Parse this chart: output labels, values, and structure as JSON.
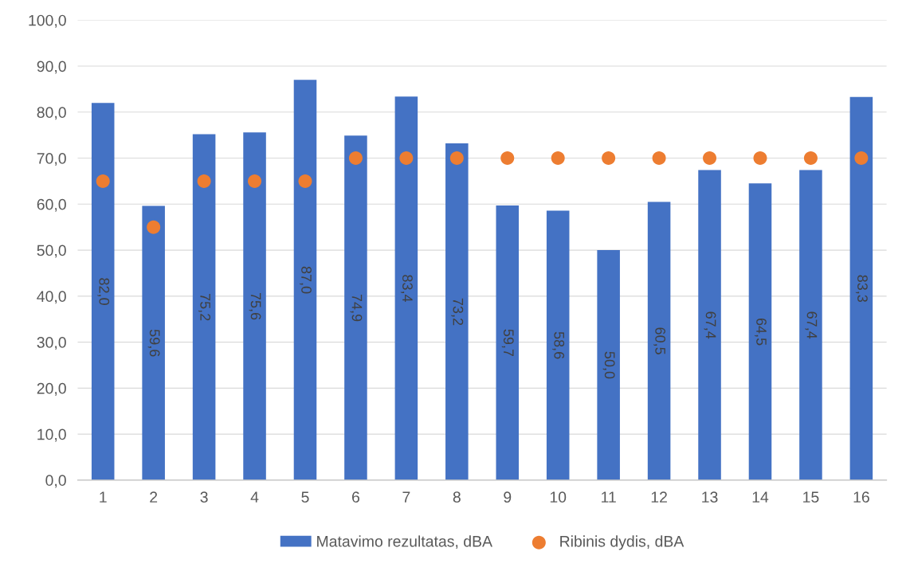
{
  "chart_data": {
    "type": "bar",
    "categories": [
      "1",
      "2",
      "3",
      "4",
      "5",
      "6",
      "7",
      "8",
      "9",
      "10",
      "11",
      "12",
      "13",
      "14",
      "15",
      "16"
    ],
    "series": [
      {
        "name": "Matavimo rezultatas, dBA",
        "color": "#4472c4",
        "values": [
          82.0,
          59.6,
          75.2,
          75.6,
          87.0,
          74.9,
          83.4,
          73.2,
          59.7,
          58.6,
          50.0,
          60.5,
          67.4,
          64.5,
          67.4,
          83.3
        ],
        "value_labels": [
          "82,0",
          "59,6",
          "75,2",
          "75,6",
          "87,0",
          "74,9",
          "83,4",
          "73,2",
          "59,7",
          "58,6",
          "50,0",
          "60,5",
          "67,4",
          "64,5",
          "67,4",
          "83,3"
        ]
      },
      {
        "name": "Ribinis dydis, dBA",
        "type": "scatter",
        "color": "#ed7d31",
        "marker": "circle",
        "x": [
          "1",
          "2",
          "3",
          "4",
          "5",
          "6",
          "7",
          "8",
          "9",
          "10",
          "11",
          "12",
          "13",
          "14",
          "15",
          "16"
        ],
        "values": [
          65,
          55,
          65,
          65,
          65,
          70,
          70,
          70,
          70,
          70,
          70,
          70,
          70,
          70,
          70,
          70
        ]
      }
    ],
    "ylim": [
      0,
      100
    ],
    "yticks": [
      {
        "value": 0,
        "label": "0,0"
      },
      {
        "value": 10,
        "label": "10,0"
      },
      {
        "value": 20,
        "label": "20,0"
      },
      {
        "value": 30,
        "label": "30,0"
      },
      {
        "value": 40,
        "label": "40,0"
      },
      {
        "value": 50,
        "label": "50,0"
      },
      {
        "value": 60,
        "label": "60,0"
      },
      {
        "value": 70,
        "label": "70,0"
      },
      {
        "value": 80,
        "label": "80,0"
      },
      {
        "value": 90,
        "label": "90,0"
      },
      {
        "value": 100,
        "label": "100,0"
      }
    ],
    "grid": "y",
    "legend": "bottom"
  }
}
